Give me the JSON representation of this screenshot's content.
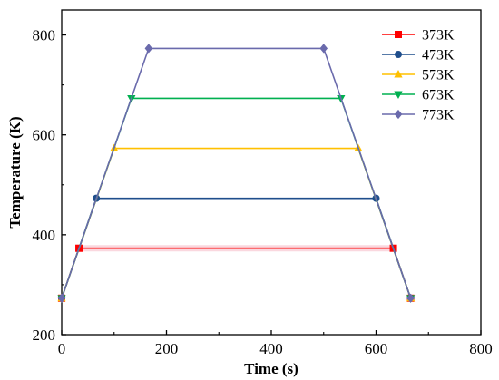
{
  "chart_data": {
    "type": "line",
    "xlabel": "Time (s)",
    "ylabel": "Temperature (K)",
    "xlim": [
      0,
      800
    ],
    "ylim": [
      200,
      850
    ],
    "xticks": [
      0,
      200,
      400,
      600,
      800
    ],
    "yticks": [
      200,
      400,
      600,
      800
    ],
    "grid": false,
    "legend_position": "top-right",
    "series": [
      {
        "name": "373K",
        "color": "#ff0000",
        "marker": "square",
        "x": [
          0,
          33,
          633,
          666
        ],
        "y": [
          273,
          373,
          373,
          273
        ]
      },
      {
        "name": "473K",
        "color": "#1f4e8c",
        "marker": "circle",
        "x": [
          0,
          66,
          600,
          666
        ],
        "y": [
          273,
          473,
          473,
          273
        ]
      },
      {
        "name": "573K",
        "color": "#ffc000",
        "marker": "triangle-up",
        "x": [
          0,
          100,
          566,
          666
        ],
        "y": [
          273,
          573,
          573,
          273
        ]
      },
      {
        "name": "673K",
        "color": "#00b050",
        "marker": "triangle-down",
        "x": [
          0,
          133,
          533,
          666
        ],
        "y": [
          273,
          673,
          673,
          273
        ]
      },
      {
        "name": "773K",
        "color": "#6a6aac",
        "marker": "diamond",
        "x": [
          0,
          166,
          500,
          666
        ],
        "y": [
          273,
          773,
          773,
          273
        ]
      }
    ]
  }
}
